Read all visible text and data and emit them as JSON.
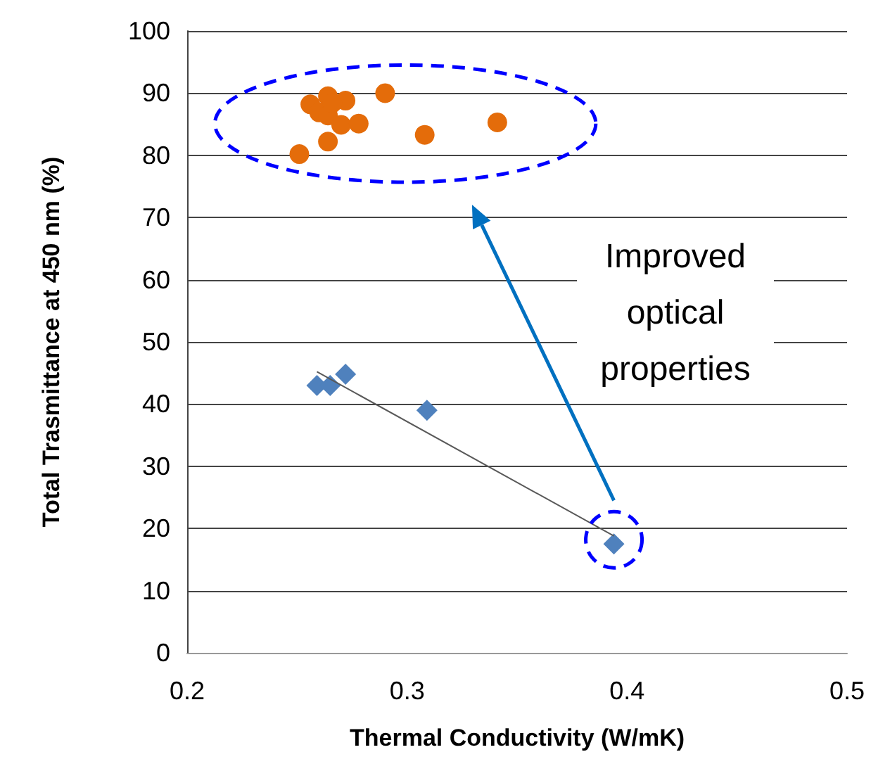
{
  "chart_data": {
    "type": "scatter",
    "xlabel": "Thermal Conductivity (W/mK)",
    "ylabel": "Total Trasmittance at 450 nm (%)",
    "xlim": [
      0.2,
      0.5
    ],
    "xticks": [
      0.2,
      0.3,
      0.4,
      0.5
    ],
    "ylim": [
      0,
      100
    ],
    "yticks": [
      0,
      10,
      20,
      30,
      40,
      50,
      60,
      70,
      80,
      90,
      100
    ],
    "grid": "y",
    "annotations": [
      "Improved optical properties"
    ],
    "series": [
      {
        "marker": "circle",
        "color": "#e46c0a",
        "x": [
          0.256,
          0.264,
          0.272,
          0.26,
          0.264,
          0.266,
          0.27,
          0.278,
          0.264,
          0.251,
          0.29,
          0.308,
          0.341
        ],
        "values": [
          88.2,
          89.5,
          88.8,
          86.9,
          86.4,
          88.4,
          84.9,
          85.1,
          82.2,
          80.2,
          90,
          83.3,
          85.3
        ]
      },
      {
        "marker": "diamond",
        "color": "#4f81bd",
        "x": [
          0.259,
          0.265,
          0.272,
          0.309,
          0.394
        ],
        "values": [
          43,
          43,
          44.8,
          39,
          17.5
        ]
      },
      {
        "type": "line",
        "marker": "none",
        "color": "#595959",
        "x": [
          0.259,
          0.394
        ],
        "values": [
          45.2,
          18.8
        ]
      }
    ]
  }
}
